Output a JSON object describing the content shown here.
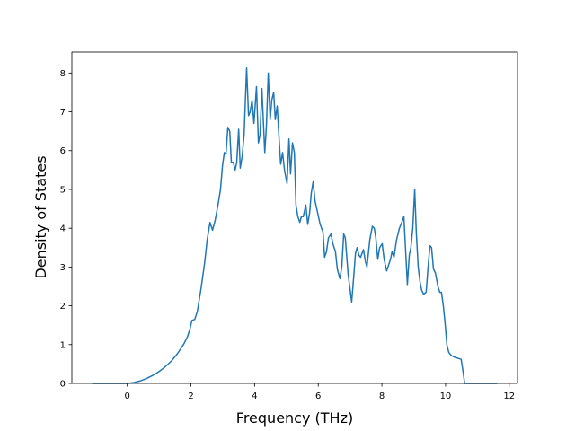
{
  "chart_data": {
    "type": "line",
    "xlabel": "Frequency (THz)",
    "ylabel": "Density of States",
    "color": "#1f77b4",
    "grid": false,
    "xlim": [
      -1.74,
      12.26
    ],
    "ylim": [
      0,
      8.54
    ],
    "xticks": [
      0,
      2,
      4,
      6,
      8,
      10,
      12
    ],
    "yticks": [
      0,
      1,
      2,
      3,
      4,
      5,
      6,
      7,
      8
    ],
    "x": [
      -1.1,
      0,
      0.2,
      0.39,
      0.59,
      0.79,
      0.99,
      1.18,
      1.38,
      1.58,
      1.78,
      1.89,
      1.97,
      2.03,
      2.12,
      2.2,
      2.31,
      2.43,
      2.51,
      2.6,
      2.68,
      2.76,
      2.85,
      2.93,
      2.99,
      3.05,
      3.1,
      3.16,
      3.22,
      3.27,
      3.33,
      3.39,
      3.44,
      3.5,
      3.55,
      3.61,
      3.67,
      3.75,
      3.81,
      3.86,
      3.92,
      3.98,
      4.06,
      4.12,
      4.17,
      4.23,
      4.32,
      4.37,
      4.43,
      4.49,
      4.54,
      4.6,
      4.65,
      4.71,
      4.77,
      4.82,
      4.88,
      4.94,
      5.02,
      5.08,
      5.13,
      5.19,
      5.25,
      5.3,
      5.36,
      5.42,
      5.47,
      5.53,
      5.61,
      5.67,
      5.73,
      5.78,
      5.84,
      5.9,
      5.98,
      6.06,
      6.15,
      6.2,
      6.26,
      6.32,
      6.4,
      6.46,
      6.54,
      6.6,
      6.68,
      6.74,
      6.8,
      6.85,
      6.94,
      7.05,
      7.11,
      7.17,
      7.22,
      7.28,
      7.33,
      7.42,
      7.48,
      7.53,
      7.62,
      7.7,
      7.76,
      7.81,
      7.87,
      7.93,
      8.01,
      8.07,
      8.15,
      8.27,
      8.32,
      8.38,
      8.46,
      8.55,
      8.6,
      8.69,
      8.74,
      8.8,
      8.86,
      8.91,
      8.97,
      9.03,
      9.08,
      9.14,
      9.2,
      9.25,
      9.31,
      9.39,
      9.45,
      9.51,
      9.56,
      9.62,
      9.68,
      9.76,
      9.82,
      9.87,
      9.93,
      9.99,
      10.04,
      10.1,
      10.18,
      10.27,
      10.38,
      10.49,
      10.55,
      10.6,
      11.62
    ],
    "values": [
      0,
      0,
      0.02,
      0.06,
      0.12,
      0.2,
      0.3,
      0.42,
      0.57,
      0.77,
      1.02,
      1.2,
      1.4,
      1.62,
      1.65,
      1.85,
      2.4,
      3.1,
      3.7,
      4.15,
      3.95,
      4.2,
      4.6,
      5.0,
      5.6,
      5.95,
      5.9,
      6.6,
      6.5,
      5.7,
      5.7,
      5.5,
      5.7,
      6.55,
      5.55,
      5.85,
      6.4,
      8.13,
      6.9,
      7.0,
      7.3,
      6.7,
      7.65,
      6.2,
      6.4,
      7.6,
      5.95,
      6.6,
      8.0,
      6.8,
      7.3,
      7.5,
      6.8,
      7.15,
      6.3,
      5.65,
      5.95,
      5.5,
      5.15,
      6.3,
      5.4,
      6.2,
      5.95,
      4.6,
      4.3,
      4.15,
      4.3,
      4.3,
      4.6,
      4.1,
      4.4,
      4.9,
      5.2,
      4.7,
      4.4,
      4.1,
      3.9,
      3.25,
      3.4,
      3.75,
      3.85,
      3.6,
      3.4,
      2.95,
      2.7,
      3.0,
      3.85,
      3.75,
      2.8,
      2.1,
      2.7,
      3.35,
      3.5,
      3.3,
      3.25,
      3.45,
      3.15,
      3.0,
      3.7,
      4.05,
      4.0,
      3.75,
      3.2,
      3.5,
      3.6,
      3.2,
      2.9,
      3.2,
      3.4,
      3.25,
      3.7,
      4.0,
      4.1,
      4.3,
      3.5,
      2.55,
      3.3,
      3.5,
      4.0,
      5.0,
      3.9,
      3.0,
      2.6,
      2.4,
      2.3,
      2.35,
      3.0,
      3.55,
      3.5,
      2.95,
      2.85,
      2.5,
      2.35,
      2.35,
      2.0,
      1.5,
      1.0,
      0.8,
      0.72,
      0.68,
      0.65,
      0.62,
      0.3,
      0,
      0
    ]
  }
}
